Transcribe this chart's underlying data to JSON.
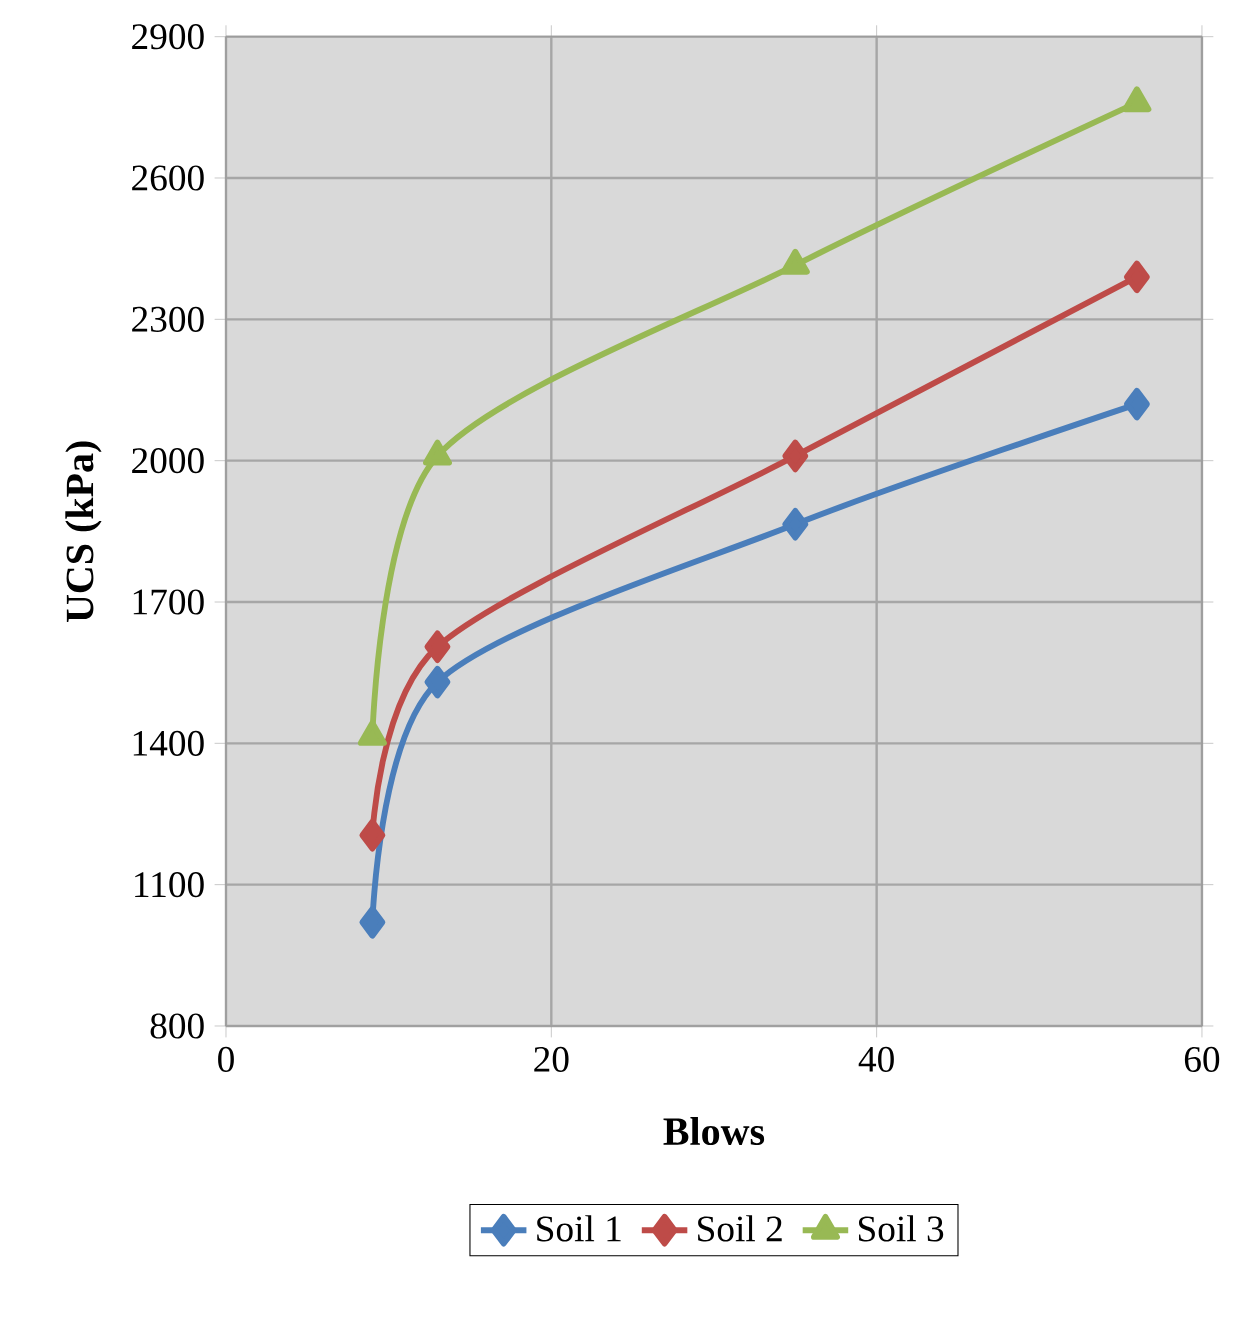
{
  "chart_data": {
    "type": "line",
    "xlabel": "Blows",
    "ylabel": "UCS (kPa)",
    "xlim": [
      0,
      60
    ],
    "xticks": [
      0,
      20,
      40,
      60
    ],
    "ylim": [
      800,
      2900
    ],
    "yticks": [
      800,
      1100,
      1400,
      1700,
      2000,
      2300,
      2600,
      2900
    ],
    "grid": true,
    "legend": "bottom",
    "series": [
      {
        "name": "Soil 1",
        "color": "#4a7ebb",
        "marker": "diamond",
        "x": [
          9,
          13,
          35,
          56
        ],
        "values": [
          1020,
          1530,
          1865,
          2120
        ]
      },
      {
        "name": "Soil 2",
        "color": "#be4b48",
        "marker": "diamond",
        "x": [
          9,
          13,
          35,
          56
        ],
        "values": [
          1205,
          1605,
          2010,
          2390
        ]
      },
      {
        "name": "Soil 3",
        "color": "#98b954",
        "marker": "triangle",
        "x": [
          9,
          13,
          35,
          56
        ],
        "values": [
          1415,
          2010,
          2415,
          2760
        ]
      }
    ]
  }
}
